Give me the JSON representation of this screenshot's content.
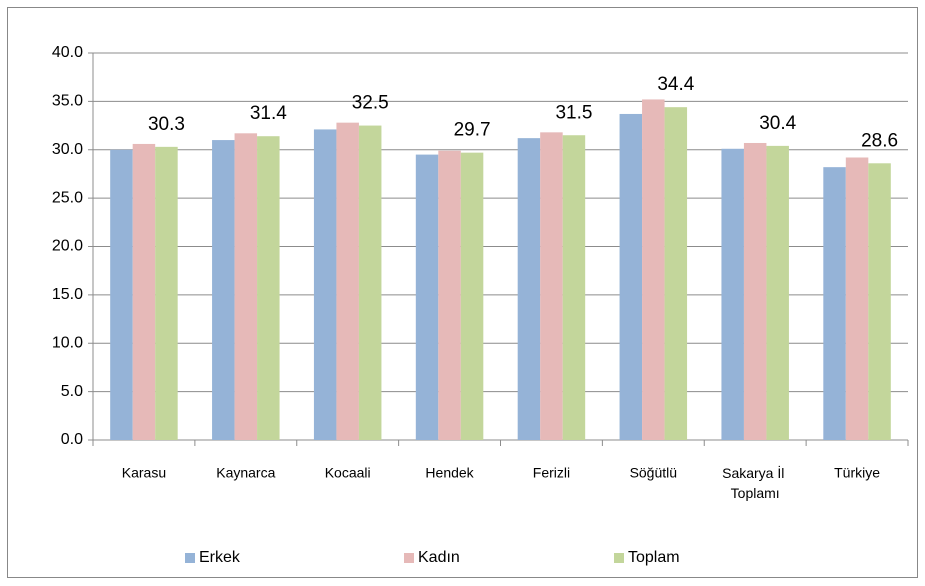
{
  "chart_data": {
    "type": "bar",
    "categories": [
      "Karasu",
      "Kaynarca",
      "Kocaali",
      "Hendek",
      "Ferizli",
      "Söğütlü",
      "Sakarya İl Toplamı",
      "Türkiye"
    ],
    "series": [
      {
        "name": "Erkek",
        "color": "#95b3d7",
        "values": [
          30.0,
          31.0,
          32.1,
          29.5,
          31.2,
          33.7,
          30.1,
          28.2
        ]
      },
      {
        "name": "Kadın",
        "color": "#e6b9b8",
        "values": [
          30.6,
          31.7,
          32.8,
          29.9,
          31.8,
          35.2,
          30.7,
          29.2
        ]
      },
      {
        "name": "Toplam",
        "color": "#c3d69b",
        "values": [
          30.3,
          31.4,
          32.5,
          29.7,
          31.5,
          34.4,
          30.4,
          28.6
        ],
        "show_labels": true
      }
    ],
    "ylim": [
      0,
      40
    ],
    "yticks": [
      {
        "value": 0,
        "label": "0.0"
      },
      {
        "value": 5,
        "label": "5.0"
      },
      {
        "value": 10,
        "label": "10.0"
      },
      {
        "value": 15,
        "label": "15.0"
      },
      {
        "value": 20,
        "label": "20.0"
      },
      {
        "value": 25,
        "label": "25.0"
      },
      {
        "value": 30,
        "label": "30.0"
      },
      {
        "value": 35,
        "label": "35.0"
      },
      {
        "value": 40,
        "label": "40.0"
      }
    ],
    "grid": true,
    "legend": "bottom"
  }
}
